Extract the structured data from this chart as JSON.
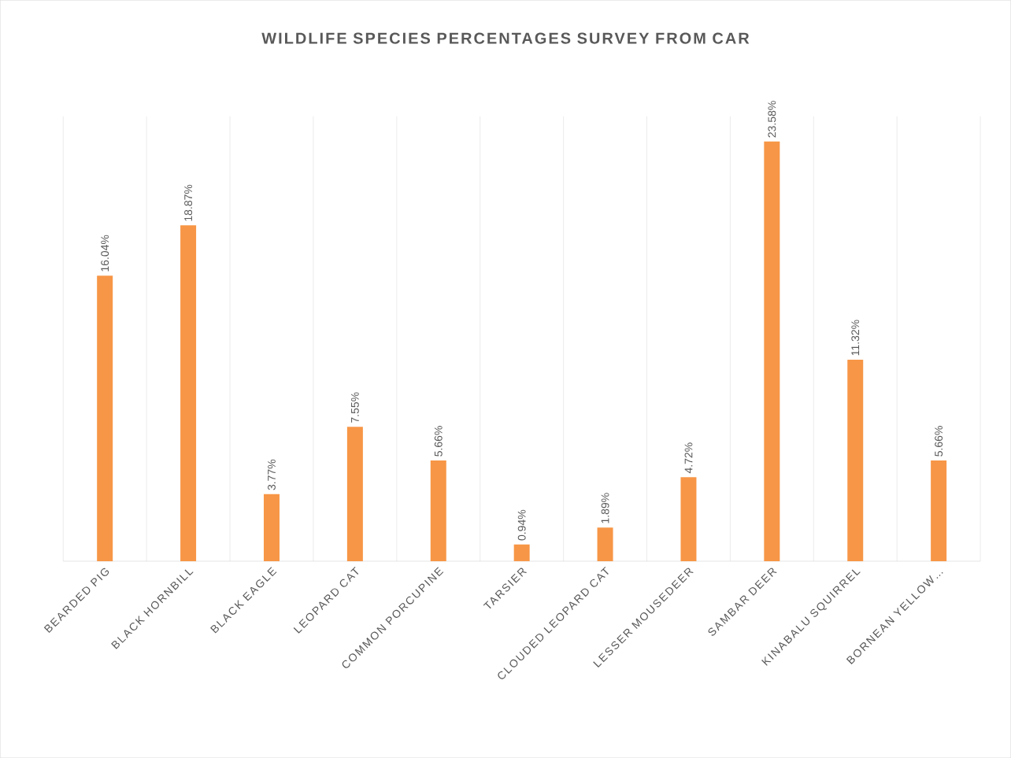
{
  "chart_data": {
    "type": "bar",
    "title": "WILDLIFE SPECIES PERCENTAGES SURVEY FROM CAR",
    "categories": [
      "BEARDED PIG",
      "BLACK HORNBILL",
      "BLACK EAGLE",
      "LEOPARD CAT",
      "COMMON PORCUPINE",
      "TARSIER",
      "CLOUDED LEOPARD CAT",
      "LESSER MOUSEDEER",
      "SAMBAR DEER",
      "KINABALU SQUIRREL",
      "BORNEAN YELLOW…"
    ],
    "values": [
      16.04,
      18.87,
      3.77,
      7.55,
      5.66,
      0.94,
      1.89,
      4.72,
      23.58,
      11.32,
      5.66
    ],
    "value_labels": [
      "16.04%",
      "18.87%",
      "3.77%",
      "7.55%",
      "5.66%",
      "0.94%",
      "1.89%",
      "4.72%",
      "23.58%",
      "11.32%",
      "5.66%"
    ],
    "color": "#f79646",
    "grid": "x",
    "tick_labels": "x"
  }
}
